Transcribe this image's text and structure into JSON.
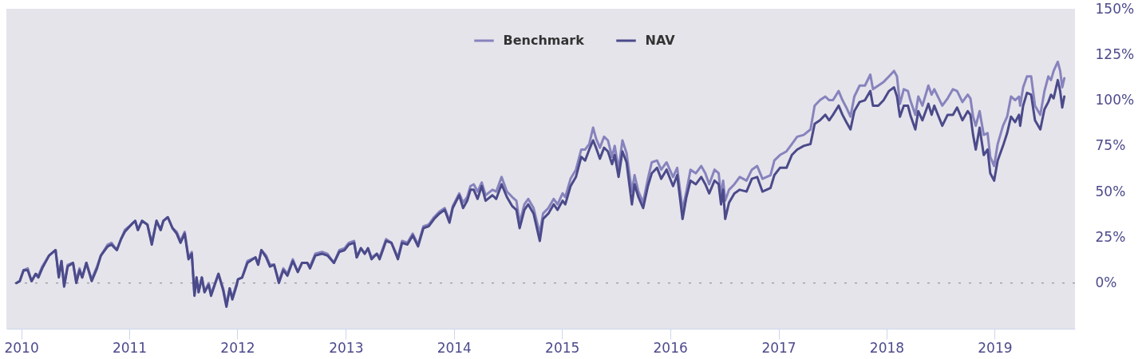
{
  "chart_data": {
    "type": "line",
    "x": [
      "2009-12-16",
      "2009-12-27",
      "2010-01-09",
      "2010-01-23",
      "2010-02-05",
      "2010-02-19",
      "2010-02-28",
      "2010-03-13",
      "2010-04-05",
      "2010-04-27",
      "2010-05-08",
      "2010-05-17",
      "2010-05-26",
      "2010-06-07",
      "2010-06-25",
      "2010-07-06",
      "2010-07-17",
      "2010-07-26",
      "2010-08-09",
      "2010-08-27",
      "2010-09-14",
      "2010-09-27",
      "2010-10-20",
      "2010-11-02",
      "2010-11-20",
      "2010-12-04",
      "2010-12-17",
      "2011-01-08",
      "2011-01-21",
      "2011-01-30",
      "2011-02-13",
      "2011-03-03",
      "2011-03-18",
      "2011-04-03",
      "2011-04-17",
      "2011-04-26",
      "2011-05-11",
      "2011-05-27",
      "2011-06-10",
      "2011-06-23",
      "2011-07-07",
      "2011-07-20",
      "2011-07-31",
      "2011-08-09",
      "2011-08-16",
      "2011-08-23",
      "2011-09-03",
      "2011-09-12",
      "2011-09-26",
      "2011-10-04",
      "2011-10-29",
      "2011-11-14",
      "2011-11-25",
      "2011-12-06",
      "2011-12-15",
      "2011-12-30",
      "2012-01-03",
      "2012-01-17",
      "2012-02-04",
      "2012-03-02",
      "2012-03-11",
      "2012-03-22",
      "2012-04-07",
      "2012-04-20",
      "2012-05-04",
      "2012-05-20",
      "2012-06-04",
      "2012-06-18",
      "2012-07-06",
      "2012-07-23",
      "2012-08-06",
      "2012-08-24",
      "2012-09-02",
      "2012-09-20",
      "2012-10-13",
      "2012-10-31",
      "2012-11-22",
      "2012-12-10",
      "2012-12-28",
      "2013-01-11",
      "2013-01-29",
      "2013-02-07",
      "2013-02-21",
      "2013-03-06",
      "2013-03-17",
      "2013-03-29",
      "2013-04-16",
      "2013-04-25",
      "2013-05-17",
      "2013-06-04",
      "2013-06-26",
      "2013-07-10",
      "2013-07-28",
      "2013-08-15",
      "2013-09-02",
      "2013-09-20",
      "2013-10-08",
      "2013-10-26",
      "2013-11-13",
      "2013-12-01",
      "2013-12-17",
      "2013-12-28",
      "2014-01-19",
      "2014-02-01",
      "2014-02-15",
      "2014-02-26",
      "2014-03-09",
      "2014-03-22",
      "2014-04-05",
      "2014-04-18",
      "2014-05-11",
      "2014-05-24",
      "2014-06-11",
      "2014-06-29",
      "2014-07-17",
      "2014-07-31",
      "2014-08-11",
      "2014-08-27",
      "2014-09-09",
      "2014-09-27",
      "2014-10-18",
      "2014-10-29",
      "2014-11-16",
      "2014-12-04",
      "2014-12-17",
      "2015-01-03",
      "2015-01-12",
      "2015-01-30",
      "2015-02-17",
      "2015-03-07",
      "2015-03-20",
      "2015-04-03",
      "2015-04-16",
      "2015-04-26",
      "2015-05-09",
      "2015-05-23",
      "2015-06-05",
      "2015-06-19",
      "2015-06-28",
      "2015-07-11",
      "2015-07-24",
      "2015-08-07",
      "2015-08-25",
      "2015-09-03",
      "2015-09-16",
      "2015-10-02",
      "2015-10-18",
      "2015-10-31",
      "2015-11-18",
      "2015-12-02",
      "2015-12-20",
      "2016-01-11",
      "2016-01-25",
      "2016-02-12",
      "2016-02-25",
      "2016-03-10",
      "2016-03-28",
      "2016-04-15",
      "2016-04-29",
      "2016-05-12",
      "2016-05-30",
      "2016-06-13",
      "2016-06-21",
      "2016-06-28",
      "2016-07-05",
      "2016-07-18",
      "2016-08-05",
      "2016-08-23",
      "2016-09-15",
      "2016-10-03",
      "2016-10-21",
      "2016-11-08",
      "2016-12-05",
      "2016-12-18",
      "2017-01-06",
      "2017-01-28",
      "2017-02-15",
      "2017-03-05",
      "2017-03-27",
      "2017-04-19",
      "2017-05-03",
      "2017-05-21",
      "2017-06-08",
      "2017-06-21",
      "2017-07-04",
      "2017-07-23",
      "2017-08-05",
      "2017-08-18",
      "2017-09-01",
      "2017-09-14",
      "2017-10-02",
      "2017-10-20",
      "2017-11-07",
      "2017-11-16",
      "2017-12-04",
      "2017-12-22",
      "2018-01-09",
      "2018-01-26",
      "2018-02-05",
      "2018-02-15",
      "2018-02-28",
      "2018-03-14",
      "2018-03-22",
      "2018-04-08",
      "2018-04-18",
      "2018-05-02",
      "2018-05-22",
      "2018-06-02",
      "2018-06-11",
      "2018-07-08",
      "2018-07-26",
      "2018-08-13",
      "2018-08-27",
      "2018-09-14",
      "2018-10-02",
      "2018-10-11",
      "2018-10-20",
      "2018-10-29",
      "2018-11-11",
      "2018-11-25",
      "2018-12-08",
      "2018-12-17",
      "2018-12-30",
      "2019-01-11",
      "2019-01-29",
      "2019-02-12",
      "2019-02-25",
      "2019-03-11",
      "2019-03-24",
      "2019-03-28",
      "2019-04-07",
      "2019-04-20",
      "2019-05-04",
      "2019-05-17",
      "2019-06-04",
      "2019-06-18",
      "2019-07-01",
      "2019-07-10",
      "2019-07-19",
      "2019-08-02",
      "2019-08-10",
      "2019-08-17",
      "2019-08-24"
    ],
    "series": [
      {
        "name": "Benchmark",
        "color": "#8783bd",
        "values": [
          0,
          1,
          7,
          8,
          1,
          5,
          4,
          9,
          15,
          18,
          4,
          12,
          -1,
          10,
          11,
          1,
          8,
          3,
          11,
          2,
          9,
          15,
          21,
          22,
          18,
          24,
          29,
          32,
          34,
          29,
          34,
          32,
          22,
          34,
          29,
          34,
          36,
          30,
          28,
          23,
          28,
          14,
          17,
          -6,
          3,
          -5,
          3,
          -5,
          0,
          -6,
          5,
          -3,
          -12,
          -3,
          -8,
          0,
          2,
          3,
          12,
          14,
          10,
          18,
          15,
          10,
          10,
          1,
          8,
          5,
          13,
          6,
          11,
          11,
          9,
          16,
          17,
          16,
          11,
          18,
          19,
          22,
          23,
          14,
          19,
          16,
          19,
          14,
          16,
          14,
          24,
          22,
          14,
          23,
          22,
          27,
          21,
          31,
          32,
          36,
          39,
          41,
          34,
          42,
          49,
          44,
          47,
          53,
          54,
          50,
          55,
          48,
          51,
          50,
          58,
          50,
          47,
          45,
          33,
          43,
          46,
          41,
          27,
          38,
          41,
          46,
          43,
          49,
          47,
          57,
          62,
          73,
          73,
          76,
          85,
          79,
          74,
          80,
          78,
          69,
          75,
          62,
          78,
          71,
          50,
          59,
          50,
          44,
          57,
          66,
          67,
          62,
          66,
          58,
          63,
          40,
          50,
          62,
          60,
          64,
          60,
          54,
          62,
          60,
          47,
          56,
          45,
          51,
          54,
          58,
          56,
          62,
          64,
          57,
          59,
          67,
          70,
          72,
          76,
          80,
          81,
          84,
          97,
          100,
          102,
          100,
          100,
          105,
          100,
          96,
          91,
          102,
          108,
          108,
          114,
          106,
          108,
          110,
          113,
          116,
          113,
          98,
          106,
          105,
          100,
          92,
          102,
          97,
          108,
          103,
          106,
          97,
          101,
          106,
          105,
          99,
          103,
          101,
          91,
          86,
          94,
          81,
          82,
          69,
          64,
          76,
          86,
          91,
          102,
          100,
          102,
          97,
          107,
          113,
          113,
          97,
          92,
          105,
          113,
          111,
          116,
          121,
          116,
          107,
          112
        ]
      },
      {
        "name": "NAV",
        "color": "#4b4a8a",
        "values": [
          0,
          1,
          7,
          7,
          1,
          5,
          3,
          8,
          15,
          18,
          3,
          12,
          -2,
          9,
          11,
          0,
          7,
          3,
          11,
          1,
          8,
          15,
          20,
          21,
          18,
          24,
          28,
          32,
          34,
          29,
          34,
          32,
          21,
          34,
          29,
          34,
          36,
          30,
          27,
          22,
          27,
          13,
          16,
          -7,
          3,
          -5,
          3,
          -5,
          -1,
          -7,
          5,
          -4,
          -13,
          -3,
          -9,
          -1,
          2,
          3,
          11,
          14,
          10,
          18,
          14,
          9,
          10,
          0,
          7,
          4,
          12,
          6,
          11,
          11,
          8,
          15,
          16,
          15,
          11,
          17,
          18,
          21,
          22,
          14,
          19,
          16,
          19,
          13,
          16,
          13,
          23,
          22,
          13,
          22,
          21,
          26,
          20,
          30,
          31,
          35,
          38,
          40,
          33,
          41,
          48,
          41,
          45,
          51,
          51,
          46,
          53,
          45,
          48,
          46,
          54,
          47,
          42,
          40,
          30,
          40,
          43,
          38,
          23,
          35,
          38,
          43,
          40,
          45,
          43,
          53,
          58,
          69,
          67,
          73,
          78,
          74,
          68,
          74,
          72,
          65,
          70,
          58,
          72,
          66,
          43,
          54,
          47,
          41,
          53,
          60,
          63,
          57,
          62,
          53,
          59,
          35,
          47,
          56,
          54,
          58,
          54,
          49,
          56,
          54,
          43,
          51,
          35,
          44,
          49,
          51,
          50,
          57,
          58,
          50,
          52,
          59,
          63,
          63,
          70,
          73,
          75,
          76,
          87,
          89,
          92,
          89,
          92,
          97,
          92,
          88,
          84,
          94,
          99,
          100,
          105,
          97,
          97,
          100,
          105,
          107,
          102,
          91,
          97,
          97,
          92,
          84,
          94,
          89,
          98,
          92,
          97,
          86,
          92,
          92,
          96,
          89,
          94,
          92,
          81,
          73,
          85,
          70,
          73,
          60,
          56,
          67,
          75,
          82,
          91,
          88,
          92,
          86,
          97,
          104,
          103,
          89,
          84,
          95,
          99,
          103,
          101,
          111,
          105,
          96,
          102
        ]
      }
    ],
    "xlim": [
      "2009-11-12",
      "2019-09-29"
    ],
    "xticks": [
      "2010",
      "2011",
      "2012",
      "2013",
      "2014",
      "2015",
      "2016",
      "2017",
      "2018",
      "2019"
    ],
    "ylim": [
      -25,
      150
    ],
    "yticks": [
      {
        "value": 0,
        "label": "0%"
      },
      {
        "value": 25,
        "label": "25%"
      },
      {
        "value": 50,
        "label": "50%"
      },
      {
        "value": 75,
        "label": "75%"
      },
      {
        "value": 100,
        "label": "100%"
      },
      {
        "value": 125,
        "label": "125%"
      },
      {
        "value": 150,
        "label": "150%"
      }
    ],
    "ref_lines": [
      {
        "axis": "y",
        "value": 0,
        "line_style": "dotted",
        "color": "#a3a3ab"
      }
    ],
    "legend": "top"
  }
}
